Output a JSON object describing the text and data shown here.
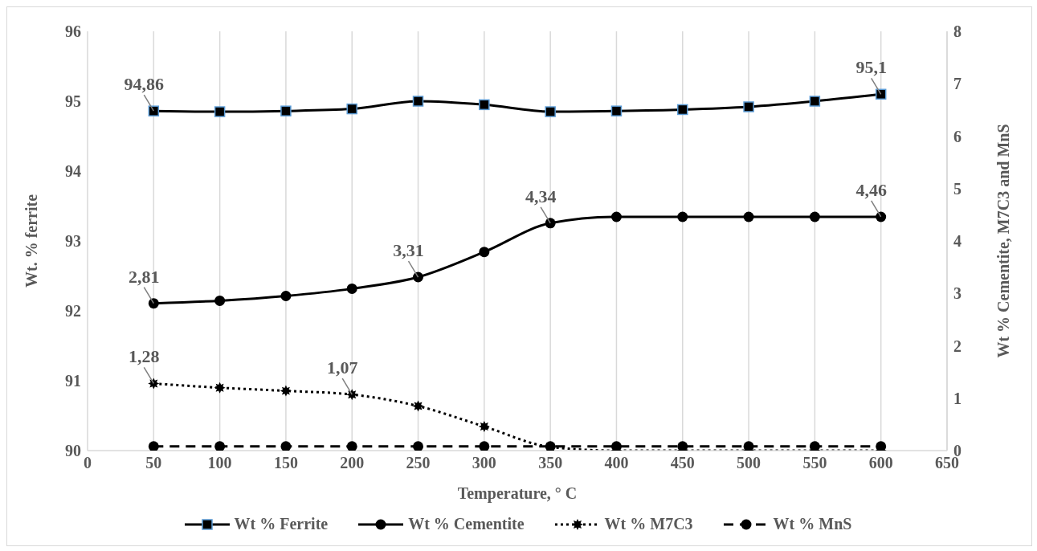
{
  "chart_data": {
    "type": "line",
    "xlabel": "Temperature, ° C",
    "ylabel": "Wt. % ferrite",
    "y2label": "Wt % Cementite, M7C3 and MnS",
    "x": [
      50,
      100,
      150,
      200,
      250,
      300,
      350,
      400,
      450,
      500,
      550,
      600
    ],
    "series": [
      {
        "name": "Wt % Ferrite",
        "color": "#000000",
        "marker": "square",
        "line_style": "solid",
        "values": [
          94.86,
          94.85,
          94.86,
          94.89,
          95.0,
          94.95,
          94.85,
          94.86,
          94.88,
          94.92,
          95.0,
          95.1
        ],
        "value_labels": [
          "94,86",
          null,
          null,
          null,
          null,
          null,
          null,
          null,
          null,
          null,
          null,
          "95,1"
        ]
      },
      {
        "name": "Wt % Cementite",
        "color": "#000000",
        "marker": "circle",
        "line_style": "solid",
        "axis": "y2",
        "values": [
          2.81,
          2.86,
          2.95,
          3.09,
          3.31,
          3.79,
          4.34,
          4.46,
          4.46,
          4.46,
          4.46,
          4.46
        ],
        "value_labels": [
          "2,81",
          null,
          null,
          null,
          "3,31",
          null,
          "4,34",
          null,
          null,
          null,
          null,
          "4,46"
        ]
      },
      {
        "name": "Wt % M7C3",
        "color": "#000000",
        "marker": "star",
        "line_style": "dotted",
        "axis": "y2",
        "values": [
          1.28,
          1.2,
          1.14,
          1.07,
          0.85,
          0.46,
          0.07,
          0,
          0,
          0,
          0,
          0
        ],
        "value_labels": [
          "1,28",
          null,
          null,
          "1,07",
          null,
          null,
          null,
          null,
          null,
          null,
          null,
          null
        ]
      },
      {
        "name": "Wt % MnS",
        "color": "#000000",
        "marker": "circle",
        "line_style": "dashed",
        "axis": "y2",
        "values": [
          0.08,
          0.08,
          0.08,
          0.08,
          0.08,
          0.08,
          0.08,
          0.08,
          0.08,
          0.08,
          0.08,
          0.08
        ]
      }
    ],
    "xlim": [
      0,
      650
    ],
    "xticks": [
      0,
      50,
      100,
      150,
      200,
      250,
      300,
      350,
      400,
      450,
      500,
      550,
      600,
      650
    ],
    "ylim": [
      90,
      96
    ],
    "yticks": [
      90,
      91,
      92,
      93,
      94,
      95,
      96
    ],
    "y2lim": [
      0,
      8
    ],
    "y2ticks": [
      0,
      1,
      2,
      3,
      4,
      5,
      6,
      7,
      8
    ],
    "grid": true,
    "legend": "bottom"
  }
}
